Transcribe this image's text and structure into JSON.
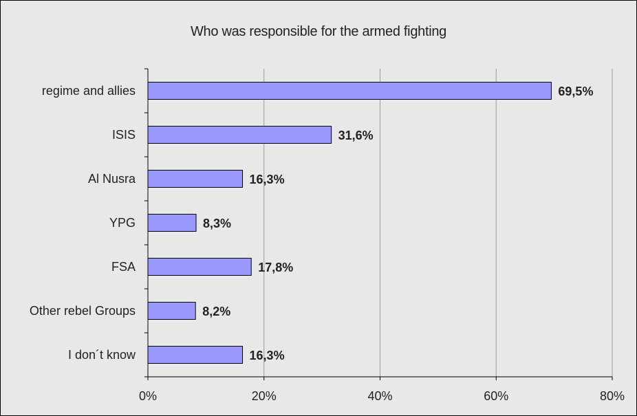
{
  "chart_data": {
    "type": "bar",
    "orientation": "horizontal",
    "title": "Who was responsible for the armed fighting",
    "categories": [
      "regime and allies",
      "ISIS",
      "Al Nusra",
      "YPG",
      "FSA",
      "Other rebel Groups",
      "I don´t know"
    ],
    "values": [
      69.5,
      31.6,
      16.3,
      8.3,
      17.8,
      8.2,
      16.3
    ],
    "value_labels": [
      "69,5%",
      "31,6%",
      "16,3%",
      "8,3%",
      "17,8%",
      "8,2%",
      "16,3%"
    ],
    "xlim": [
      0,
      80
    ],
    "x_ticks": [
      0,
      20,
      40,
      60,
      80
    ],
    "x_tick_labels": [
      "0%",
      "20%",
      "40%",
      "60%",
      "80%"
    ],
    "grid": true,
    "legend": "none",
    "xlabel": "",
    "ylabel": "",
    "colors": {
      "bar_fill": "#9999ff",
      "bar_stroke": "#000000",
      "background": "#e8e8e8",
      "gridline": "#9a9a9a"
    }
  }
}
